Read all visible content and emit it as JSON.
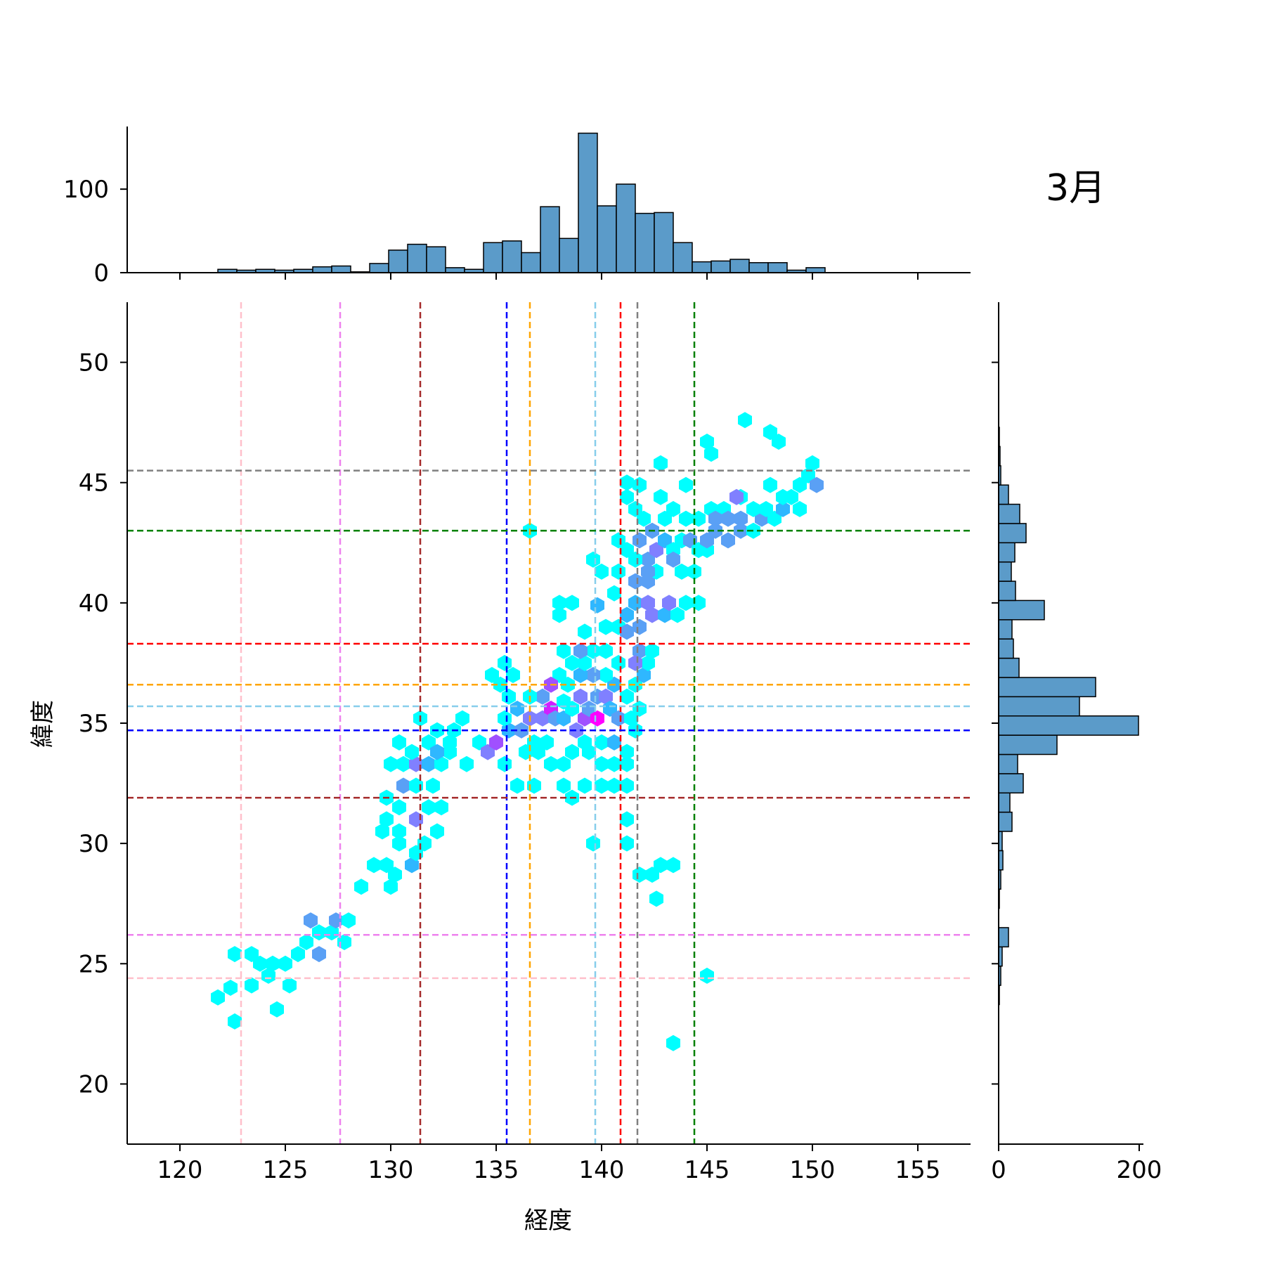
{
  "chart_data": {
    "type": "hexbin",
    "title": "3月",
    "xlabel": "経度",
    "ylabel": "緯度",
    "xlim": [
      117.5,
      157.5
    ],
    "ylim": [
      17.5,
      52.5
    ],
    "xticks": [
      120,
      125,
      130,
      135,
      140,
      145,
      150,
      155
    ],
    "yticks": [
      20,
      25,
      30,
      35,
      40,
      45,
      50
    ],
    "top_hist_ylim": [
      0,
      175
    ],
    "top_hist_yticks": [
      0,
      100
    ],
    "right_hist_xlim": [
      0,
      200
    ],
    "right_hist_xticks": [
      0,
      200
    ],
    "hist_color": "#5b9bc9",
    "hex_colors": [
      "#00ffff",
      "#2fb7ff",
      "#5aa0f5",
      "#8080ff",
      "#a050ff",
      "#d020ff",
      "#ff00ff"
    ],
    "top_hist": {
      "bin_edges": [
        120.9,
        121.8,
        122.7,
        123.6,
        124.5,
        125.4,
        126.3,
        127.2,
        128.1,
        129.0,
        129.9,
        130.8,
        131.7,
        132.6,
        133.5,
        134.4,
        135.3,
        136.2,
        137.1,
        138.0,
        138.9,
        139.8,
        140.7,
        141.6,
        142.5,
        143.4,
        144.3,
        145.2,
        146.1,
        147.0,
        147.9,
        148.8,
        149.7,
        150.6
      ],
      "counts": [
        0,
        4,
        3,
        4,
        3,
        4,
        7,
        8,
        1,
        11,
        27,
        34,
        31,
        6,
        4,
        36,
        38,
        24,
        79,
        41,
        167,
        80,
        106,
        71,
        72,
        36,
        13,
        14,
        16,
        12,
        12,
        3,
        6
      ]
    },
    "right_hist": {
      "bin_edges": [
        23.3,
        24.1,
        24.9,
        25.7,
        26.5,
        27.3,
        28.1,
        28.9,
        29.7,
        30.5,
        31.3,
        32.1,
        32.9,
        33.7,
        34.5,
        35.3,
        36.1,
        36.9,
        37.7,
        38.5,
        39.3,
        40.1,
        40.9,
        41.7,
        42.5,
        43.3,
        44.1,
        44.9,
        45.7,
        46.5,
        47.3
      ],
      "counts": [
        1,
        3,
        5,
        14,
        0,
        1,
        3,
        6,
        5,
        19,
        16,
        35,
        27,
        83,
        199,
        115,
        138,
        29,
        21,
        19,
        65,
        24,
        18,
        23,
        39,
        30,
        14,
        3,
        2,
        1
      ]
    },
    "hexbins": [
      [
        122.4,
        24.0,
        0
      ],
      [
        121.8,
        23.6,
        0
      ],
      [
        122.6,
        22.6,
        0
      ],
      [
        122.6,
        25.4,
        0
      ],
      [
        123.4,
        25.4,
        0
      ],
      [
        123.8,
        25.0,
        0
      ],
      [
        124.4,
        25.0,
        0
      ],
      [
        125.0,
        25.0,
        0
      ],
      [
        124.2,
        24.5,
        0
      ],
      [
        125.6,
        25.4,
        0
      ],
      [
        126.0,
        25.9,
        0
      ],
      [
        123.4,
        24.1,
        0
      ],
      [
        124.6,
        23.1,
        0
      ],
      [
        125.2,
        24.1,
        0
      ],
      [
        126.2,
        26.8,
        2
      ],
      [
        126.6,
        26.3,
        0
      ],
      [
        127.2,
        26.3,
        0
      ],
      [
        127.4,
        26.8,
        2
      ],
      [
        128.0,
        26.8,
        0
      ],
      [
        127.8,
        25.9,
        0
      ],
      [
        126.6,
        25.4,
        2
      ],
      [
        128.6,
        28.2,
        0
      ],
      [
        129.2,
        29.1,
        0
      ],
      [
        129.8,
        29.1,
        0
      ],
      [
        130.0,
        28.2,
        0
      ],
      [
        130.2,
        28.7,
        0
      ],
      [
        131.0,
        29.1,
        1
      ],
      [
        130.4,
        30.0,
        0
      ],
      [
        131.2,
        29.6,
        0
      ],
      [
        131.6,
        30.0,
        0
      ],
      [
        129.6,
        30.5,
        0
      ],
      [
        130.4,
        30.5,
        0
      ],
      [
        129.8,
        31.0,
        0
      ],
      [
        130.4,
        31.5,
        0
      ],
      [
        131.2,
        31.0,
        3
      ],
      [
        132.2,
        30.5,
        0
      ],
      [
        132.4,
        31.5,
        0
      ],
      [
        131.8,
        31.5,
        0
      ],
      [
        129.8,
        31.9,
        0
      ],
      [
        130.6,
        32.4,
        2
      ],
      [
        131.2,
        32.4,
        0
      ],
      [
        132.0,
        32.4,
        0
      ],
      [
        130.0,
        33.3,
        0
      ],
      [
        130.6,
        33.3,
        0
      ],
      [
        131.2,
        33.3,
        3
      ],
      [
        131.8,
        33.3,
        1
      ],
      [
        132.4,
        33.3,
        0
      ],
      [
        130.4,
        34.2,
        0
      ],
      [
        131.0,
        33.8,
        0
      ],
      [
        131.8,
        34.2,
        0
      ],
      [
        132.2,
        34.7,
        0
      ],
      [
        131.4,
        35.2,
        0
      ],
      [
        132.8,
        34.2,
        0
      ],
      [
        133.0,
        34.7,
        0
      ],
      [
        133.4,
        35.2,
        0
      ],
      [
        133.6,
        33.3,
        0
      ],
      [
        132.8,
        33.8,
        0
      ],
      [
        132.2,
        33.8,
        1
      ],
      [
        134.2,
        34.2,
        0
      ],
      [
        134.6,
        33.8,
        3
      ],
      [
        135.0,
        34.2,
        4
      ],
      [
        135.4,
        33.3,
        0
      ],
      [
        135.6,
        34.7,
        1
      ],
      [
        136.2,
        34.7,
        2
      ],
      [
        136.6,
        35.2,
        3
      ],
      [
        137.2,
        35.2,
        3
      ],
      [
        137.6,
        35.6,
        5
      ],
      [
        137.2,
        36.1,
        2
      ],
      [
        136.6,
        36.1,
        0
      ],
      [
        135.4,
        35.2,
        0
      ],
      [
        135.6,
        36.1,
        0
      ],
      [
        136.0,
        35.6,
        1
      ],
      [
        137.8,
        35.2,
        2
      ],
      [
        138.2,
        35.2,
        1
      ],
      [
        138.6,
        35.6,
        0
      ],
      [
        138.8,
        34.7,
        3
      ],
      [
        139.2,
        35.2,
        4
      ],
      [
        139.4,
        35.6,
        2
      ],
      [
        139.8,
        35.2,
        6
      ],
      [
        139.8,
        36.1,
        2
      ],
      [
        140.2,
        36.1,
        3
      ],
      [
        140.4,
        35.6,
        1
      ],
      [
        140.8,
        35.2,
        2
      ],
      [
        140.6,
        36.6,
        1
      ],
      [
        140.2,
        37.0,
        0
      ],
      [
        139.6,
        37.0,
        2
      ],
      [
        139.0,
        37.0,
        1
      ],
      [
        138.6,
        37.5,
        0
      ],
      [
        139.2,
        37.5,
        0
      ],
      [
        138.0,
        37.0,
        0
      ],
      [
        137.6,
        36.6,
        4
      ],
      [
        138.4,
        36.6,
        0
      ],
      [
        139.0,
        36.1,
        3
      ],
      [
        138.2,
        35.9,
        0
      ],
      [
        136.8,
        34.2,
        0
      ],
      [
        137.4,
        34.2,
        0
      ],
      [
        136.4,
        33.8,
        0
      ],
      [
        137.0,
        33.8,
        0
      ],
      [
        137.6,
        33.3,
        0
      ],
      [
        138.2,
        33.3,
        0
      ],
      [
        138.6,
        33.8,
        0
      ],
      [
        139.2,
        34.2,
        0
      ],
      [
        139.4,
        33.8,
        0
      ],
      [
        140.0,
        34.2,
        0
      ],
      [
        140.0,
        33.3,
        0
      ],
      [
        140.6,
        33.3,
        0
      ],
      [
        141.2,
        33.3,
        0
      ],
      [
        141.2,
        33.8,
        0
      ],
      [
        140.6,
        34.2,
        1
      ],
      [
        141.6,
        34.7,
        0
      ],
      [
        141.4,
        35.2,
        0
      ],
      [
        141.8,
        35.6,
        0
      ],
      [
        141.2,
        36.1,
        0
      ],
      [
        141.6,
        36.6,
        0
      ],
      [
        142.0,
        37.0,
        1
      ],
      [
        142.2,
        37.5,
        0
      ],
      [
        141.8,
        38.0,
        2
      ],
      [
        142.4,
        38.0,
        0
      ],
      [
        140.8,
        37.5,
        0
      ],
      [
        140.2,
        38.0,
        0
      ],
      [
        139.6,
        38.0,
        0
      ],
      [
        139.0,
        38.0,
        2
      ],
      [
        138.2,
        38.0,
        0
      ],
      [
        136.0,
        32.4,
        0
      ],
      [
        136.8,
        32.4,
        0
      ],
      [
        138.2,
        32.4,
        0
      ],
      [
        138.6,
        31.9,
        0
      ],
      [
        139.2,
        32.4,
        0
      ],
      [
        140.0,
        32.4,
        0
      ],
      [
        140.6,
        32.4,
        0
      ],
      [
        141.2,
        32.4,
        0
      ],
      [
        141.2,
        31.0,
        0
      ],
      [
        141.2,
        30.0,
        0
      ],
      [
        139.6,
        30.0,
        0
      ],
      [
        141.8,
        28.7,
        0
      ],
      [
        142.4,
        28.7,
        0
      ],
      [
        142.6,
        27.7,
        0
      ],
      [
        143.4,
        29.1,
        0
      ],
      [
        142.8,
        29.1,
        0
      ],
      [
        145.0,
        24.5,
        0
      ],
      [
        143.4,
        21.7,
        0
      ],
      [
        136.6,
        43.0,
        0
      ],
      [
        134.8,
        37.0,
        0
      ],
      [
        135.4,
        37.5,
        0
      ],
      [
        135.8,
        37.0,
        0
      ],
      [
        135.2,
        36.6,
        0
      ],
      [
        138.0,
        39.5,
        0
      ],
      [
        138.0,
        40.0,
        0
      ],
      [
        138.6,
        40.0,
        0
      ],
      [
        139.2,
        38.8,
        0
      ],
      [
        139.8,
        39.9,
        1
      ],
      [
        140.2,
        39.0,
        0
      ],
      [
        140.8,
        39.0,
        0
      ],
      [
        141.2,
        39.5,
        1
      ],
      [
        141.8,
        39.0,
        2
      ],
      [
        141.6,
        40.0,
        1
      ],
      [
        142.2,
        40.0,
        3
      ],
      [
        142.4,
        39.5,
        3
      ],
      [
        143.0,
        39.5,
        1
      ],
      [
        143.6,
        39.5,
        0
      ],
      [
        143.2,
        40.0,
        3
      ],
      [
        144.0,
        40.0,
        0
      ],
      [
        144.6,
        40.0,
        0
      ],
      [
        141.6,
        40.9,
        2
      ],
      [
        142.2,
        40.9,
        2
      ],
      [
        142.6,
        41.3,
        0
      ],
      [
        142.2,
        41.8,
        2
      ],
      [
        142.6,
        42.2,
        3
      ],
      [
        143.0,
        42.6,
        1
      ],
      [
        141.6,
        41.8,
        0
      ],
      [
        141.2,
        42.2,
        0
      ],
      [
        140.8,
        41.3,
        0
      ],
      [
        140.6,
        40.4,
        0
      ],
      [
        140.0,
        41.3,
        0
      ],
      [
        139.6,
        41.8,
        0
      ],
      [
        140.8,
        42.6,
        0
      ],
      [
        141.8,
        42.6,
        2
      ],
      [
        142.4,
        43.0,
        2
      ],
      [
        142.0,
        43.5,
        0
      ],
      [
        143.0,
        43.5,
        0
      ],
      [
        143.4,
        42.2,
        0
      ],
      [
        143.4,
        41.8,
        2
      ],
      [
        143.8,
        42.6,
        0
      ],
      [
        144.2,
        42.6,
        2
      ],
      [
        144.6,
        42.2,
        0
      ],
      [
        144.4,
        41.3,
        0
      ],
      [
        145.0,
        42.2,
        0
      ],
      [
        145.0,
        42.6,
        2
      ],
      [
        145.4,
        43.0,
        2
      ],
      [
        146.0,
        42.6,
        2
      ],
      [
        146.6,
        43.0,
        2
      ],
      [
        147.2,
        43.0,
        0
      ],
      [
        147.6,
        43.5,
        2
      ],
      [
        148.2,
        43.5,
        0
      ],
      [
        148.6,
        43.9,
        1
      ],
      [
        149.0,
        44.4,
        0
      ],
      [
        149.4,
        44.9,
        0
      ],
      [
        149.8,
        45.3,
        0
      ],
      [
        150.0,
        45.8,
        0
      ],
      [
        150.2,
        44.9,
        2
      ],
      [
        149.4,
        43.9,
        0
      ],
      [
        148.6,
        44.4,
        0
      ],
      [
        148.0,
        44.9,
        0
      ],
      [
        147.2,
        43.9,
        0
      ],
      [
        146.6,
        44.4,
        0
      ],
      [
        145.8,
        43.9,
        0
      ],
      [
        145.2,
        43.9,
        0
      ],
      [
        144.6,
        43.5,
        0
      ],
      [
        144.0,
        43.5,
        0
      ],
      [
        146.6,
        43.5,
        2
      ],
      [
        146.0,
        43.5,
        2
      ],
      [
        145.4,
        43.5,
        2
      ],
      [
        146.4,
        44.4,
        3
      ],
      [
        147.8,
        43.9,
        0
      ],
      [
        141.2,
        44.4,
        0
      ],
      [
        141.8,
        44.9,
        0
      ],
      [
        141.6,
        43.9,
        0
      ],
      [
        142.8,
        44.4,
        0
      ],
      [
        143.4,
        43.9,
        0
      ],
      [
        144.0,
        44.9,
        0
      ],
      [
        142.8,
        45.8,
        0
      ],
      [
        145.0,
        46.7,
        0
      ],
      [
        145.2,
        46.2,
        0
      ],
      [
        146.8,
        47.6,
        0
      ],
      [
        148.0,
        47.1,
        0
      ],
      [
        148.4,
        46.7,
        0
      ],
      [
        141.2,
        45.0,
        0
      ],
      [
        143.8,
        41.3,
        0
      ],
      [
        142.2,
        41.3,
        2
      ],
      [
        141.6,
        37.5,
        3
      ],
      [
        141.2,
        38.8,
        2
      ]
    ],
    "reference_lines": {
      "vertical": [
        {
          "x": 122.9,
          "color": "#ffc0cb"
        },
        {
          "x": 127.6,
          "color": "#ee82ee"
        },
        {
          "x": 131.4,
          "color": "#a52a2a"
        },
        {
          "x": 135.5,
          "color": "#0000ff"
        },
        {
          "x": 136.6,
          "color": "#ffa500"
        },
        {
          "x": 139.7,
          "color": "#87ceeb"
        },
        {
          "x": 140.9,
          "color": "#ff0000"
        },
        {
          "x": 141.7,
          "color": "#808080"
        },
        {
          "x": 144.4,
          "color": "#008000"
        }
      ],
      "horizontal": [
        {
          "y": 45.5,
          "color": "#808080"
        },
        {
          "y": 43.0,
          "color": "#008000"
        },
        {
          "y": 38.3,
          "color": "#ff0000"
        },
        {
          "y": 36.6,
          "color": "#ffa500"
        },
        {
          "y": 35.7,
          "color": "#87ceeb"
        },
        {
          "y": 34.7,
          "color": "#0000ff"
        },
        {
          "y": 31.9,
          "color": "#a52a2a"
        },
        {
          "y": 26.2,
          "color": "#ee82ee"
        },
        {
          "y": 24.4,
          "color": "#ffc0cb"
        }
      ]
    }
  }
}
